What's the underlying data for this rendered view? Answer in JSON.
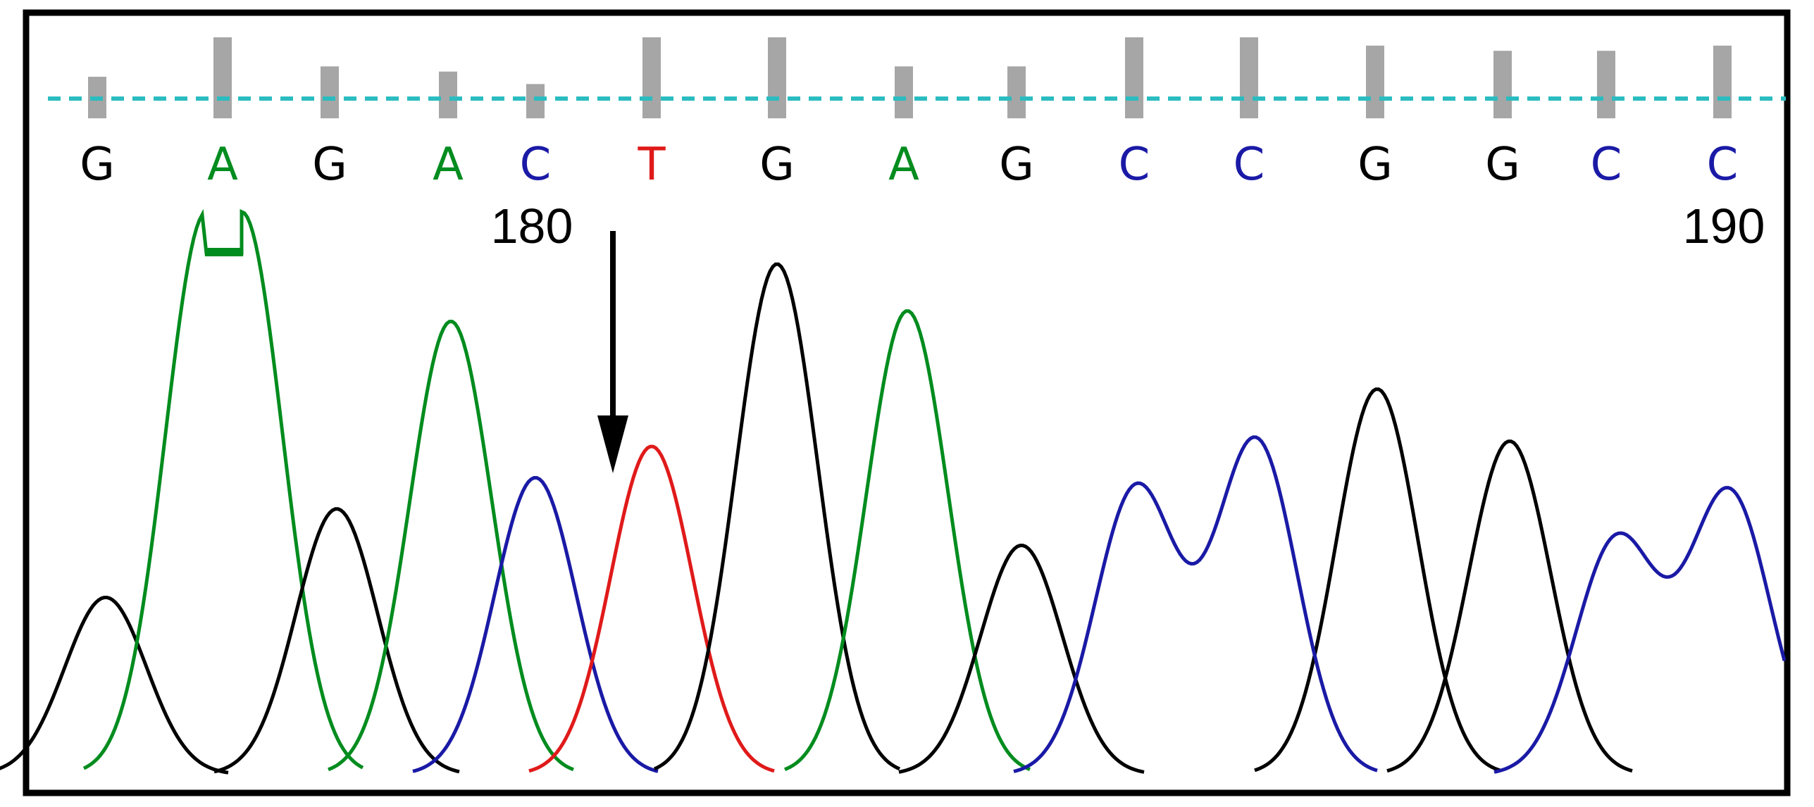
{
  "chart_data": {
    "type": "line",
    "title": "",
    "xlabel": "",
    "ylabel": "",
    "grid": false,
    "legend": "none",
    "bases": [
      {
        "call": "G",
        "quality": 0.4,
        "channel": "G"
      },
      {
        "call": "A",
        "quality": 0.78,
        "channel": "A"
      },
      {
        "call": "G",
        "quality": 0.5,
        "channel": "G"
      },
      {
        "call": "A",
        "quality": 0.45,
        "channel": "A"
      },
      {
        "call": "C",
        "quality": 0.33,
        "channel": "C"
      },
      {
        "call": "T",
        "quality": 0.78,
        "channel": "T"
      },
      {
        "call": "G",
        "quality": 0.78,
        "channel": "G"
      },
      {
        "call": "A",
        "quality": 0.5,
        "channel": "A"
      },
      {
        "call": "G",
        "quality": 0.5,
        "channel": "G"
      },
      {
        "call": "C",
        "quality": 0.78,
        "channel": "C"
      },
      {
        "call": "C",
        "quality": 0.78,
        "channel": "C"
      },
      {
        "call": "G",
        "quality": 0.7,
        "channel": "G"
      },
      {
        "call": "G",
        "quality": 0.65,
        "channel": "G"
      },
      {
        "call": "C",
        "quality": 0.65,
        "channel": "C"
      },
      {
        "call": "C",
        "quality": 0.7,
        "channel": "C"
      }
    ],
    "position_labels": [
      {
        "label": "180",
        "after_base_index": 4
      },
      {
        "label": "190",
        "after_base_index": 14
      }
    ],
    "peaks": [
      {
        "base_index": 0,
        "channel": "G",
        "height": 0.34
      },
      {
        "base_index": 1,
        "channel": "A",
        "height": 1.0
      },
      {
        "base_index": 2,
        "channel": "G",
        "height": 0.51
      },
      {
        "base_index": 3,
        "channel": "A",
        "height": 0.87
      },
      {
        "base_index": 4,
        "channel": "C",
        "height": 0.57
      },
      {
        "base_index": 5,
        "channel": "T",
        "height": 0.63
      },
      {
        "base_index": 6,
        "channel": "G",
        "height": 0.98
      },
      {
        "base_index": 7,
        "channel": "A",
        "height": 0.89
      },
      {
        "base_index": 8,
        "channel": "G",
        "height": 0.44
      },
      {
        "base_index": 9,
        "channel": "C",
        "height": 0.55
      },
      {
        "base_index": 10,
        "channel": "C",
        "height": 0.64
      },
      {
        "base_index": 11,
        "channel": "G",
        "height": 0.74
      },
      {
        "base_index": 12,
        "channel": "G",
        "height": 0.64
      },
      {
        "base_index": 13,
        "channel": "C",
        "height": 0.45
      },
      {
        "base_index": 14,
        "channel": "C",
        "height": 0.54
      }
    ],
    "saturated_peak_base_index": 1,
    "mutation_arrow_base_index": 5,
    "channel_colors": {
      "A": "#008c1e",
      "C": "#1a1aa6",
      "G": "#000000",
      "T": "#e01a1a"
    },
    "quality_bar_color": "#a6a6a6",
    "threshold_line_color": "#2bbcc0"
  }
}
